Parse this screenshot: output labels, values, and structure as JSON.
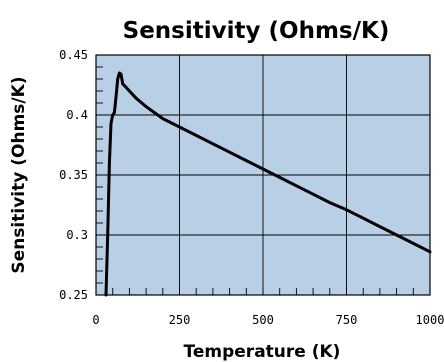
{
  "chart_data": {
    "type": "line",
    "title": "Sensitivity (Ohms/K)",
    "xlabel": "Temperature (K)",
    "ylabel": "Sensitivity (Ohms/K)",
    "xlim": [
      0,
      1000
    ],
    "ylim": [
      0.25,
      0.45
    ],
    "x_ticks": [
      0,
      250,
      500,
      750,
      1000
    ],
    "x_tick_labels": [
      "0",
      "250",
      "500",
      "750",
      "1000"
    ],
    "y_ticks": [
      0.25,
      0.3,
      0.35,
      0.4,
      0.45
    ],
    "y_tick_labels": [
      "0.25",
      "0.3",
      "0.35",
      "0.4",
      "0.45"
    ],
    "grid": true,
    "legend": "none",
    "colors": {
      "plot_background": "#b8cfe6",
      "grid": "#000000",
      "line": "#000000"
    },
    "series": [
      {
        "x": [
          30,
          35,
          40,
          45,
          50,
          55,
          60,
          65,
          70,
          75,
          80,
          90,
          100,
          120,
          150,
          200,
          250,
          300,
          350,
          400,
          450,
          500,
          550,
          600,
          650,
          700,
          750,
          800,
          850,
          900,
          950,
          1000
        ],
        "y": [
          0.25,
          0.3,
          0.36,
          0.393,
          0.4,
          0.402,
          0.415,
          0.43,
          0.435,
          0.434,
          0.426,
          0.423,
          0.42,
          0.414,
          0.407,
          0.397,
          0.39,
          0.383,
          0.376,
          0.369,
          0.362,
          0.355,
          0.348,
          0.341,
          0.334,
          0.327,
          0.321,
          0.314,
          0.307,
          0.3,
          0.293,
          0.286
        ]
      }
    ]
  }
}
